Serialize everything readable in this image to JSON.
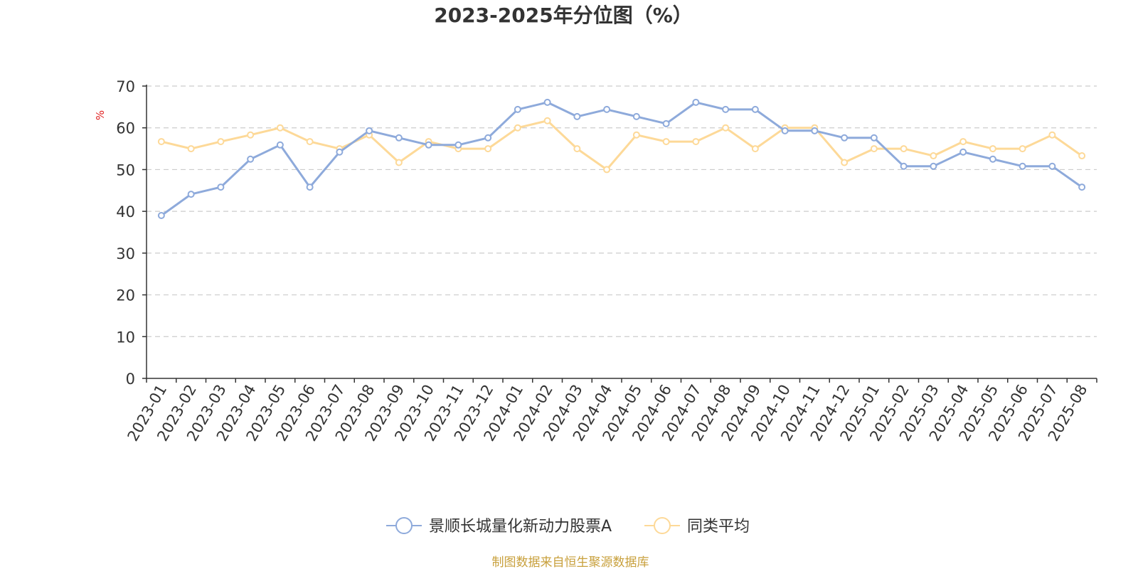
{
  "colors": {
    "series_a": "#8eaadb",
    "series_b": "#fdd998",
    "grid": "#cccccc",
    "axis": "#333333",
    "unit": "#e02020",
    "source": "#c8a03c"
  },
  "chart_data": {
    "type": "line",
    "title": "2023-2025年分位图（%）",
    "y_unit": "%",
    "ylim": [
      0,
      70
    ],
    "yticks": [
      0,
      10,
      20,
      30,
      40,
      50,
      60,
      70
    ],
    "grid": true,
    "legend_position": "bottom",
    "categories": [
      "2023-01",
      "2023-02",
      "2023-03",
      "2023-04",
      "2023-05",
      "2023-06",
      "2023-07",
      "2023-08",
      "2023-09",
      "2023-10",
      "2023-11",
      "2023-12",
      "2024-01",
      "2024-02",
      "2024-03",
      "2024-04",
      "2024-05",
      "2024-06",
      "2024-07",
      "2024-08",
      "2024-09",
      "2024-10",
      "2024-11",
      "2024-12",
      "2025-01",
      "2025-02",
      "2025-03",
      "2025-04",
      "2025-05",
      "2025-06",
      "2025-07",
      "2025-08"
    ],
    "series": [
      {
        "name": "景顺长城量化新动力股票A",
        "color_key": "series_a",
        "values": [
          39.0,
          44.1,
          45.8,
          52.5,
          55.9,
          45.8,
          54.2,
          59.3,
          57.6,
          55.9,
          55.9,
          57.6,
          64.4,
          66.1,
          62.7,
          64.4,
          62.7,
          61.0,
          66.1,
          64.4,
          64.4,
          59.3,
          59.3,
          57.6,
          57.6,
          50.8,
          50.8,
          54.2,
          52.5,
          50.8,
          50.8,
          45.8
        ]
      },
      {
        "name": "同类平均",
        "color_key": "series_b",
        "values": [
          56.7,
          55.0,
          56.7,
          58.3,
          60.0,
          56.7,
          55.0,
          58.3,
          51.7,
          56.7,
          55.0,
          55.0,
          60.0,
          61.7,
          55.0,
          50.0,
          58.3,
          56.7,
          56.7,
          60.0,
          55.0,
          60.0,
          60.0,
          51.7,
          55.0,
          55.0,
          53.3,
          56.7,
          55.0,
          55.0,
          58.3,
          53.3
        ]
      }
    ]
  },
  "footer": {
    "source": "制图数据来自恒生聚源数据库"
  }
}
